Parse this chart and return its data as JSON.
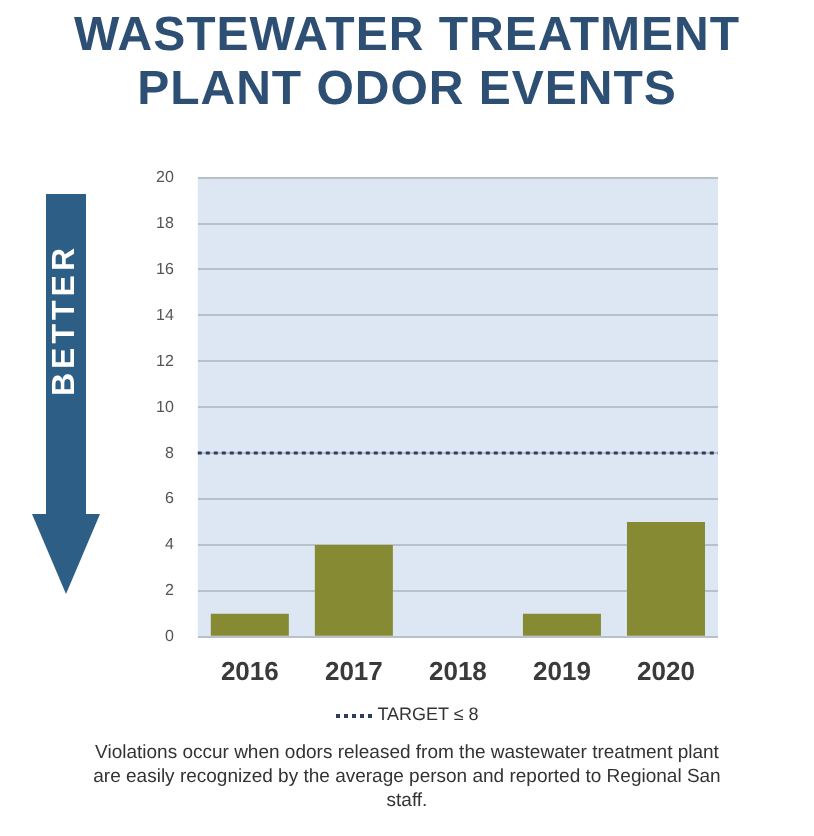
{
  "chart_data": {
    "type": "bar",
    "title": "WASTEWATER TREATMENT PLANT ODOR EVENTS",
    "categories": [
      "2016",
      "2017",
      "2018",
      "2019",
      "2020"
    ],
    "values": [
      1,
      4,
      0,
      1,
      5
    ],
    "color": "#868a32",
    "ylim": [
      0,
      20
    ],
    "yticks": [
      0,
      2,
      4,
      6,
      8,
      10,
      12,
      14,
      16,
      18,
      20
    ],
    "grid": "y",
    "ref_lines": [
      {
        "axis": "y",
        "value": 8,
        "label": "TARGET ≤ 8",
        "color": "#2b3f5c",
        "line_style": "dotted"
      }
    ],
    "legend": "bottom",
    "annotations": [
      "BETTER",
      "Violations occur when odors released from the wastewater treatment plant are easily recognized by the average person and reported to Regional San staff."
    ]
  }
}
